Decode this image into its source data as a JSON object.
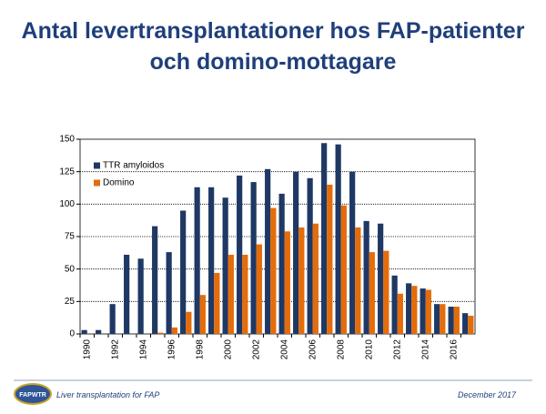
{
  "chart_data": {
    "type": "bar",
    "title": "Antal levertransplantationer hos FAP-patienter",
    "subtitle": "och domino-mottagare",
    "categories": [
      "1990",
      null,
      "1992",
      null,
      "1994",
      null,
      "1996",
      null,
      "1998",
      null,
      "2000",
      null,
      "2002",
      null,
      "2004",
      null,
      "2006",
      null,
      "2008",
      null,
      "2010",
      null,
      "2012",
      null,
      "2014",
      null,
      "2016",
      null
    ],
    "series": [
      {
        "name": "TTR amyloidos",
        "color": "#1f3864",
        "values": [
          3,
          3,
          23,
          61,
          58,
          83,
          63,
          95,
          113,
          113,
          105,
          122,
          117,
          127,
          108,
          125,
          120,
          147,
          146,
          125,
          87,
          85,
          45,
          39,
          35,
          23,
          21,
          16
        ]
      },
      {
        "name": "Domino",
        "color": "#e46c0a",
        "values": [
          0,
          0,
          0,
          0,
          0,
          1,
          5,
          17,
          30,
          47,
          61,
          61,
          69,
          97,
          79,
          82,
          85,
          115,
          99,
          82,
          63,
          64,
          31,
          37,
          34,
          23,
          21,
          14
        ]
      }
    ],
    "ylim": [
      0,
      150
    ],
    "yticks": [
      0,
      25,
      50,
      75,
      100,
      125,
      150
    ],
    "grid": true,
    "legend": "top-left"
  },
  "footer": {
    "logo": "FAPWTR",
    "left": "Liver transplantation for FAP",
    "right": "December 2017"
  }
}
